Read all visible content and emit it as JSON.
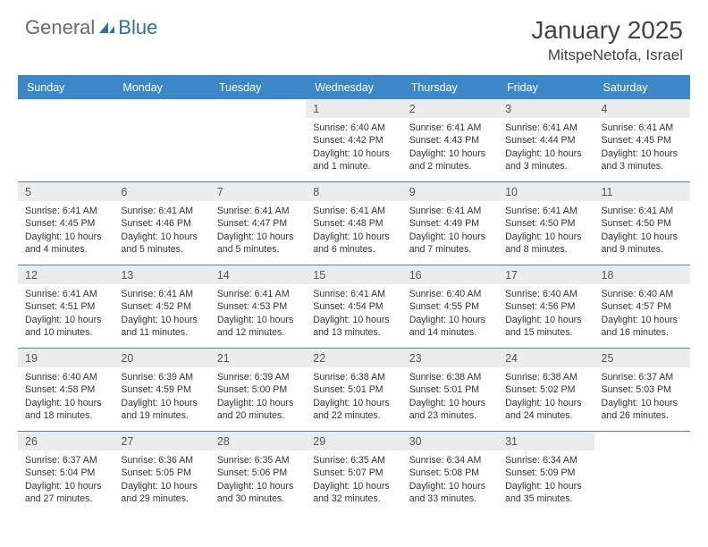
{
  "logo": {
    "general": "General",
    "blue": "Blue"
  },
  "header": {
    "title": "January 2025",
    "location": "MitspeNetofa, Israel"
  },
  "colors": {
    "header_bar": "#3b87c8",
    "day_num_bg": "#ececec",
    "row_divider": "#3b87c8",
    "logo_gray": "#6b6b6b",
    "logo_blue": "#2f6fa8"
  },
  "weekdays": [
    "Sunday",
    "Monday",
    "Tuesday",
    "Wednesday",
    "Thursday",
    "Friday",
    "Saturday"
  ],
  "weeks": [
    [
      {
        "n": "",
        "sr": "",
        "ss": "",
        "dl": ""
      },
      {
        "n": "",
        "sr": "",
        "ss": "",
        "dl": ""
      },
      {
        "n": "",
        "sr": "",
        "ss": "",
        "dl": ""
      },
      {
        "n": "1",
        "sr": "6:40 AM",
        "ss": "4:42 PM",
        "dl": "10 hours and 1 minute."
      },
      {
        "n": "2",
        "sr": "6:41 AM",
        "ss": "4:43 PM",
        "dl": "10 hours and 2 minutes."
      },
      {
        "n": "3",
        "sr": "6:41 AM",
        "ss": "4:44 PM",
        "dl": "10 hours and 3 minutes."
      },
      {
        "n": "4",
        "sr": "6:41 AM",
        "ss": "4:45 PM",
        "dl": "10 hours and 3 minutes."
      }
    ],
    [
      {
        "n": "5",
        "sr": "6:41 AM",
        "ss": "4:45 PM",
        "dl": "10 hours and 4 minutes."
      },
      {
        "n": "6",
        "sr": "6:41 AM",
        "ss": "4:46 PM",
        "dl": "10 hours and 5 minutes."
      },
      {
        "n": "7",
        "sr": "6:41 AM",
        "ss": "4:47 PM",
        "dl": "10 hours and 5 minutes."
      },
      {
        "n": "8",
        "sr": "6:41 AM",
        "ss": "4:48 PM",
        "dl": "10 hours and 6 minutes."
      },
      {
        "n": "9",
        "sr": "6:41 AM",
        "ss": "4:49 PM",
        "dl": "10 hours and 7 minutes."
      },
      {
        "n": "10",
        "sr": "6:41 AM",
        "ss": "4:50 PM",
        "dl": "10 hours and 8 minutes."
      },
      {
        "n": "11",
        "sr": "6:41 AM",
        "ss": "4:50 PM",
        "dl": "10 hours and 9 minutes."
      }
    ],
    [
      {
        "n": "12",
        "sr": "6:41 AM",
        "ss": "4:51 PM",
        "dl": "10 hours and 10 minutes."
      },
      {
        "n": "13",
        "sr": "6:41 AM",
        "ss": "4:52 PM",
        "dl": "10 hours and 11 minutes."
      },
      {
        "n": "14",
        "sr": "6:41 AM",
        "ss": "4:53 PM",
        "dl": "10 hours and 12 minutes."
      },
      {
        "n": "15",
        "sr": "6:41 AM",
        "ss": "4:54 PM",
        "dl": "10 hours and 13 minutes."
      },
      {
        "n": "16",
        "sr": "6:40 AM",
        "ss": "4:55 PM",
        "dl": "10 hours and 14 minutes."
      },
      {
        "n": "17",
        "sr": "6:40 AM",
        "ss": "4:56 PM",
        "dl": "10 hours and 15 minutes."
      },
      {
        "n": "18",
        "sr": "6:40 AM",
        "ss": "4:57 PM",
        "dl": "10 hours and 16 minutes."
      }
    ],
    [
      {
        "n": "19",
        "sr": "6:40 AM",
        "ss": "4:58 PM",
        "dl": "10 hours and 18 minutes."
      },
      {
        "n": "20",
        "sr": "6:39 AM",
        "ss": "4:59 PM",
        "dl": "10 hours and 19 minutes."
      },
      {
        "n": "21",
        "sr": "6:39 AM",
        "ss": "5:00 PM",
        "dl": "10 hours and 20 minutes."
      },
      {
        "n": "22",
        "sr": "6:38 AM",
        "ss": "5:01 PM",
        "dl": "10 hours and 22 minutes."
      },
      {
        "n": "23",
        "sr": "6:38 AM",
        "ss": "5:01 PM",
        "dl": "10 hours and 23 minutes."
      },
      {
        "n": "24",
        "sr": "6:38 AM",
        "ss": "5:02 PM",
        "dl": "10 hours and 24 minutes."
      },
      {
        "n": "25",
        "sr": "6:37 AM",
        "ss": "5:03 PM",
        "dl": "10 hours and 26 minutes."
      }
    ],
    [
      {
        "n": "26",
        "sr": "6:37 AM",
        "ss": "5:04 PM",
        "dl": "10 hours and 27 minutes."
      },
      {
        "n": "27",
        "sr": "6:36 AM",
        "ss": "5:05 PM",
        "dl": "10 hours and 29 minutes."
      },
      {
        "n": "28",
        "sr": "6:35 AM",
        "ss": "5:06 PM",
        "dl": "10 hours and 30 minutes."
      },
      {
        "n": "29",
        "sr": "6:35 AM",
        "ss": "5:07 PM",
        "dl": "10 hours and 32 minutes."
      },
      {
        "n": "30",
        "sr": "6:34 AM",
        "ss": "5:08 PM",
        "dl": "10 hours and 33 minutes."
      },
      {
        "n": "31",
        "sr": "6:34 AM",
        "ss": "5:09 PM",
        "dl": "10 hours and 35 minutes."
      },
      {
        "n": "",
        "sr": "",
        "ss": "",
        "dl": ""
      }
    ]
  ],
  "labels": {
    "sunrise": "Sunrise:",
    "sunset": "Sunset:",
    "daylight": "Daylight:"
  }
}
